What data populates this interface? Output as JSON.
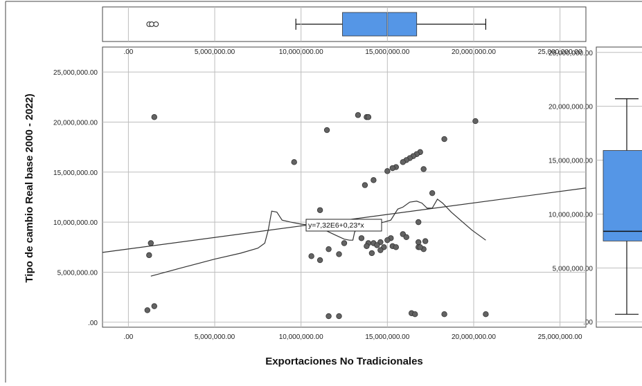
{
  "chart_data": {
    "type": "scatter",
    "xlabel": "Exportaciones No Tradicionales",
    "ylabel": "Tipo de cambio Real base 2000 - 2022)",
    "xlim": [
      -1500000,
      26500000
    ],
    "ylim": [
      -500000,
      27500000
    ],
    "x_ticks": [
      ".00",
      "5,000,000.00",
      "10,000,000.00",
      "15,000,000.00",
      "20,000,000.00",
      "25,000,000.00"
    ],
    "x_tick_values": [
      0,
      5000000,
      10000000,
      15000000,
      20000000,
      25000000
    ],
    "y_ticks": [
      ".00",
      "5,000,000.00",
      "10,000,000.00",
      "15,000,000.00",
      "20,000,000.00",
      "25,000,000.00"
    ],
    "y_tick_values": [
      0,
      5000000,
      10000000,
      15000000,
      20000000,
      25000000
    ],
    "grid": true,
    "points": [
      {
        "x": 1500000,
        "y": 20500000
      },
      {
        "x": 1300000,
        "y": 7900000
      },
      {
        "x": 1200000,
        "y": 6700000
      },
      {
        "x": 1500000,
        "y": 1600000
      },
      {
        "x": 1100000,
        "y": 1200000
      },
      {
        "x": 9600000,
        "y": 16000000
      },
      {
        "x": 11500000,
        "y": 19200000
      },
      {
        "x": 13300000,
        "y": 20700000
      },
      {
        "x": 13800000,
        "y": 20500000
      },
      {
        "x": 13900000,
        "y": 20500000
      },
      {
        "x": 20100000,
        "y": 20100000
      },
      {
        "x": 18300000,
        "y": 18300000
      },
      {
        "x": 16900000,
        "y": 17000000
      },
      {
        "x": 16700000,
        "y": 16800000
      },
      {
        "x": 16500000,
        "y": 16600000
      },
      {
        "x": 16300000,
        "y": 16400000
      },
      {
        "x": 16100000,
        "y": 16200000
      },
      {
        "x": 15900000,
        "y": 16000000
      },
      {
        "x": 15500000,
        "y": 15500000
      },
      {
        "x": 15300000,
        "y": 15400000
      },
      {
        "x": 15000000,
        "y": 15100000
      },
      {
        "x": 17100000,
        "y": 15300000
      },
      {
        "x": 14200000,
        "y": 14200000
      },
      {
        "x": 13700000,
        "y": 13700000
      },
      {
        "x": 17600000,
        "y": 12900000
      },
      {
        "x": 11100000,
        "y": 11200000
      },
      {
        "x": 16800000,
        "y": 10000000
      },
      {
        "x": 15900000,
        "y": 8800000
      },
      {
        "x": 16100000,
        "y": 8500000
      },
      {
        "x": 13500000,
        "y": 8400000
      },
      {
        "x": 15200000,
        "y": 8400000
      },
      {
        "x": 15000000,
        "y": 8200000
      },
      {
        "x": 16800000,
        "y": 8000000
      },
      {
        "x": 17200000,
        "y": 8100000
      },
      {
        "x": 14200000,
        "y": 7900000
      },
      {
        "x": 13900000,
        "y": 7900000
      },
      {
        "x": 12500000,
        "y": 7900000
      },
      {
        "x": 14600000,
        "y": 8000000
      },
      {
        "x": 14400000,
        "y": 7700000
      },
      {
        "x": 13800000,
        "y": 7600000
      },
      {
        "x": 14800000,
        "y": 7500000
      },
      {
        "x": 15300000,
        "y": 7600000
      },
      {
        "x": 15500000,
        "y": 7500000
      },
      {
        "x": 14600000,
        "y": 7200000
      },
      {
        "x": 16800000,
        "y": 7500000
      },
      {
        "x": 17100000,
        "y": 7300000
      },
      {
        "x": 16900000,
        "y": 7500000
      },
      {
        "x": 11600000,
        "y": 7300000
      },
      {
        "x": 14100000,
        "y": 6900000
      },
      {
        "x": 12200000,
        "y": 6800000
      },
      {
        "x": 10600000,
        "y": 6600000
      },
      {
        "x": 11100000,
        "y": 6200000
      },
      {
        "x": 11600000,
        "y": 600000
      },
      {
        "x": 12200000,
        "y": 600000
      },
      {
        "x": 16400000,
        "y": 900000
      },
      {
        "x": 16600000,
        "y": 800000
      },
      {
        "x": 18300000,
        "y": 800000
      },
      {
        "x": 20700000,
        "y": 800000
      }
    ],
    "fit_line": {
      "label": "y=7,32E6+0,23*x",
      "intercept": 7320000,
      "slope": 0.23
    },
    "loess": [
      [
        1300000,
        4600000
      ],
      [
        3000000,
        5400000
      ],
      [
        5000000,
        6300000
      ],
      [
        6500000,
        6900000
      ],
      [
        7500000,
        7400000
      ],
      [
        7900000,
        7900000
      ],
      [
        8100000,
        9200000
      ],
      [
        8300000,
        11100000
      ],
      [
        8600000,
        11000000
      ],
      [
        8900000,
        10200000
      ],
      [
        9400000,
        10000000
      ],
      [
        10000000,
        9800000
      ],
      [
        10500000,
        9700000
      ],
      [
        11000000,
        9400000
      ],
      [
        11500000,
        9100000
      ],
      [
        12000000,
        8700000
      ],
      [
        12500000,
        8300000
      ],
      [
        12800000,
        8200000
      ],
      [
        13000000,
        8200000
      ],
      [
        13100000,
        9000000
      ],
      [
        13300000,
        9500000
      ],
      [
        13700000,
        9700000
      ],
      [
        14200000,
        9800000
      ],
      [
        14800000,
        10000000
      ],
      [
        15200000,
        10200000
      ],
      [
        15600000,
        11300000
      ],
      [
        15900000,
        11500000
      ],
      [
        16300000,
        12000000
      ],
      [
        16700000,
        12100000
      ],
      [
        17000000,
        11900000
      ],
      [
        17300000,
        11400000
      ],
      [
        17600000,
        11400000
      ],
      [
        17900000,
        12300000
      ],
      [
        18200000,
        11900000
      ],
      [
        18700000,
        11000000
      ],
      [
        19300000,
        10100000
      ],
      [
        19900000,
        9200000
      ],
      [
        20700000,
        8200000
      ]
    ],
    "x_box": {
      "outliers": [
        1200000,
        1350000,
        1600000
      ],
      "whisker_low": 9700000,
      "q1": 12400000,
      "median": 15000000,
      "q3": 16700000,
      "whisker_high": 20700000,
      "color": "#5596e6"
    },
    "y_box": {
      "whisker_low": 700000,
      "q1": 7500000,
      "median": 8400000,
      "q3": 15900000,
      "whisker_high": 20700000,
      "ylim": [
        -500000,
        25500000
      ],
      "y_ticks": [
        ".00",
        "5,000,000.00",
        "10,000,000.00",
        "15,000,000.00",
        "20,000,000.00",
        "25,000,000.00"
      ],
      "y_tick_values": [
        0,
        5000000,
        10000000,
        15000000,
        20000000,
        25000000
      ],
      "color": "#5596e6"
    },
    "point_color": "#636363"
  }
}
